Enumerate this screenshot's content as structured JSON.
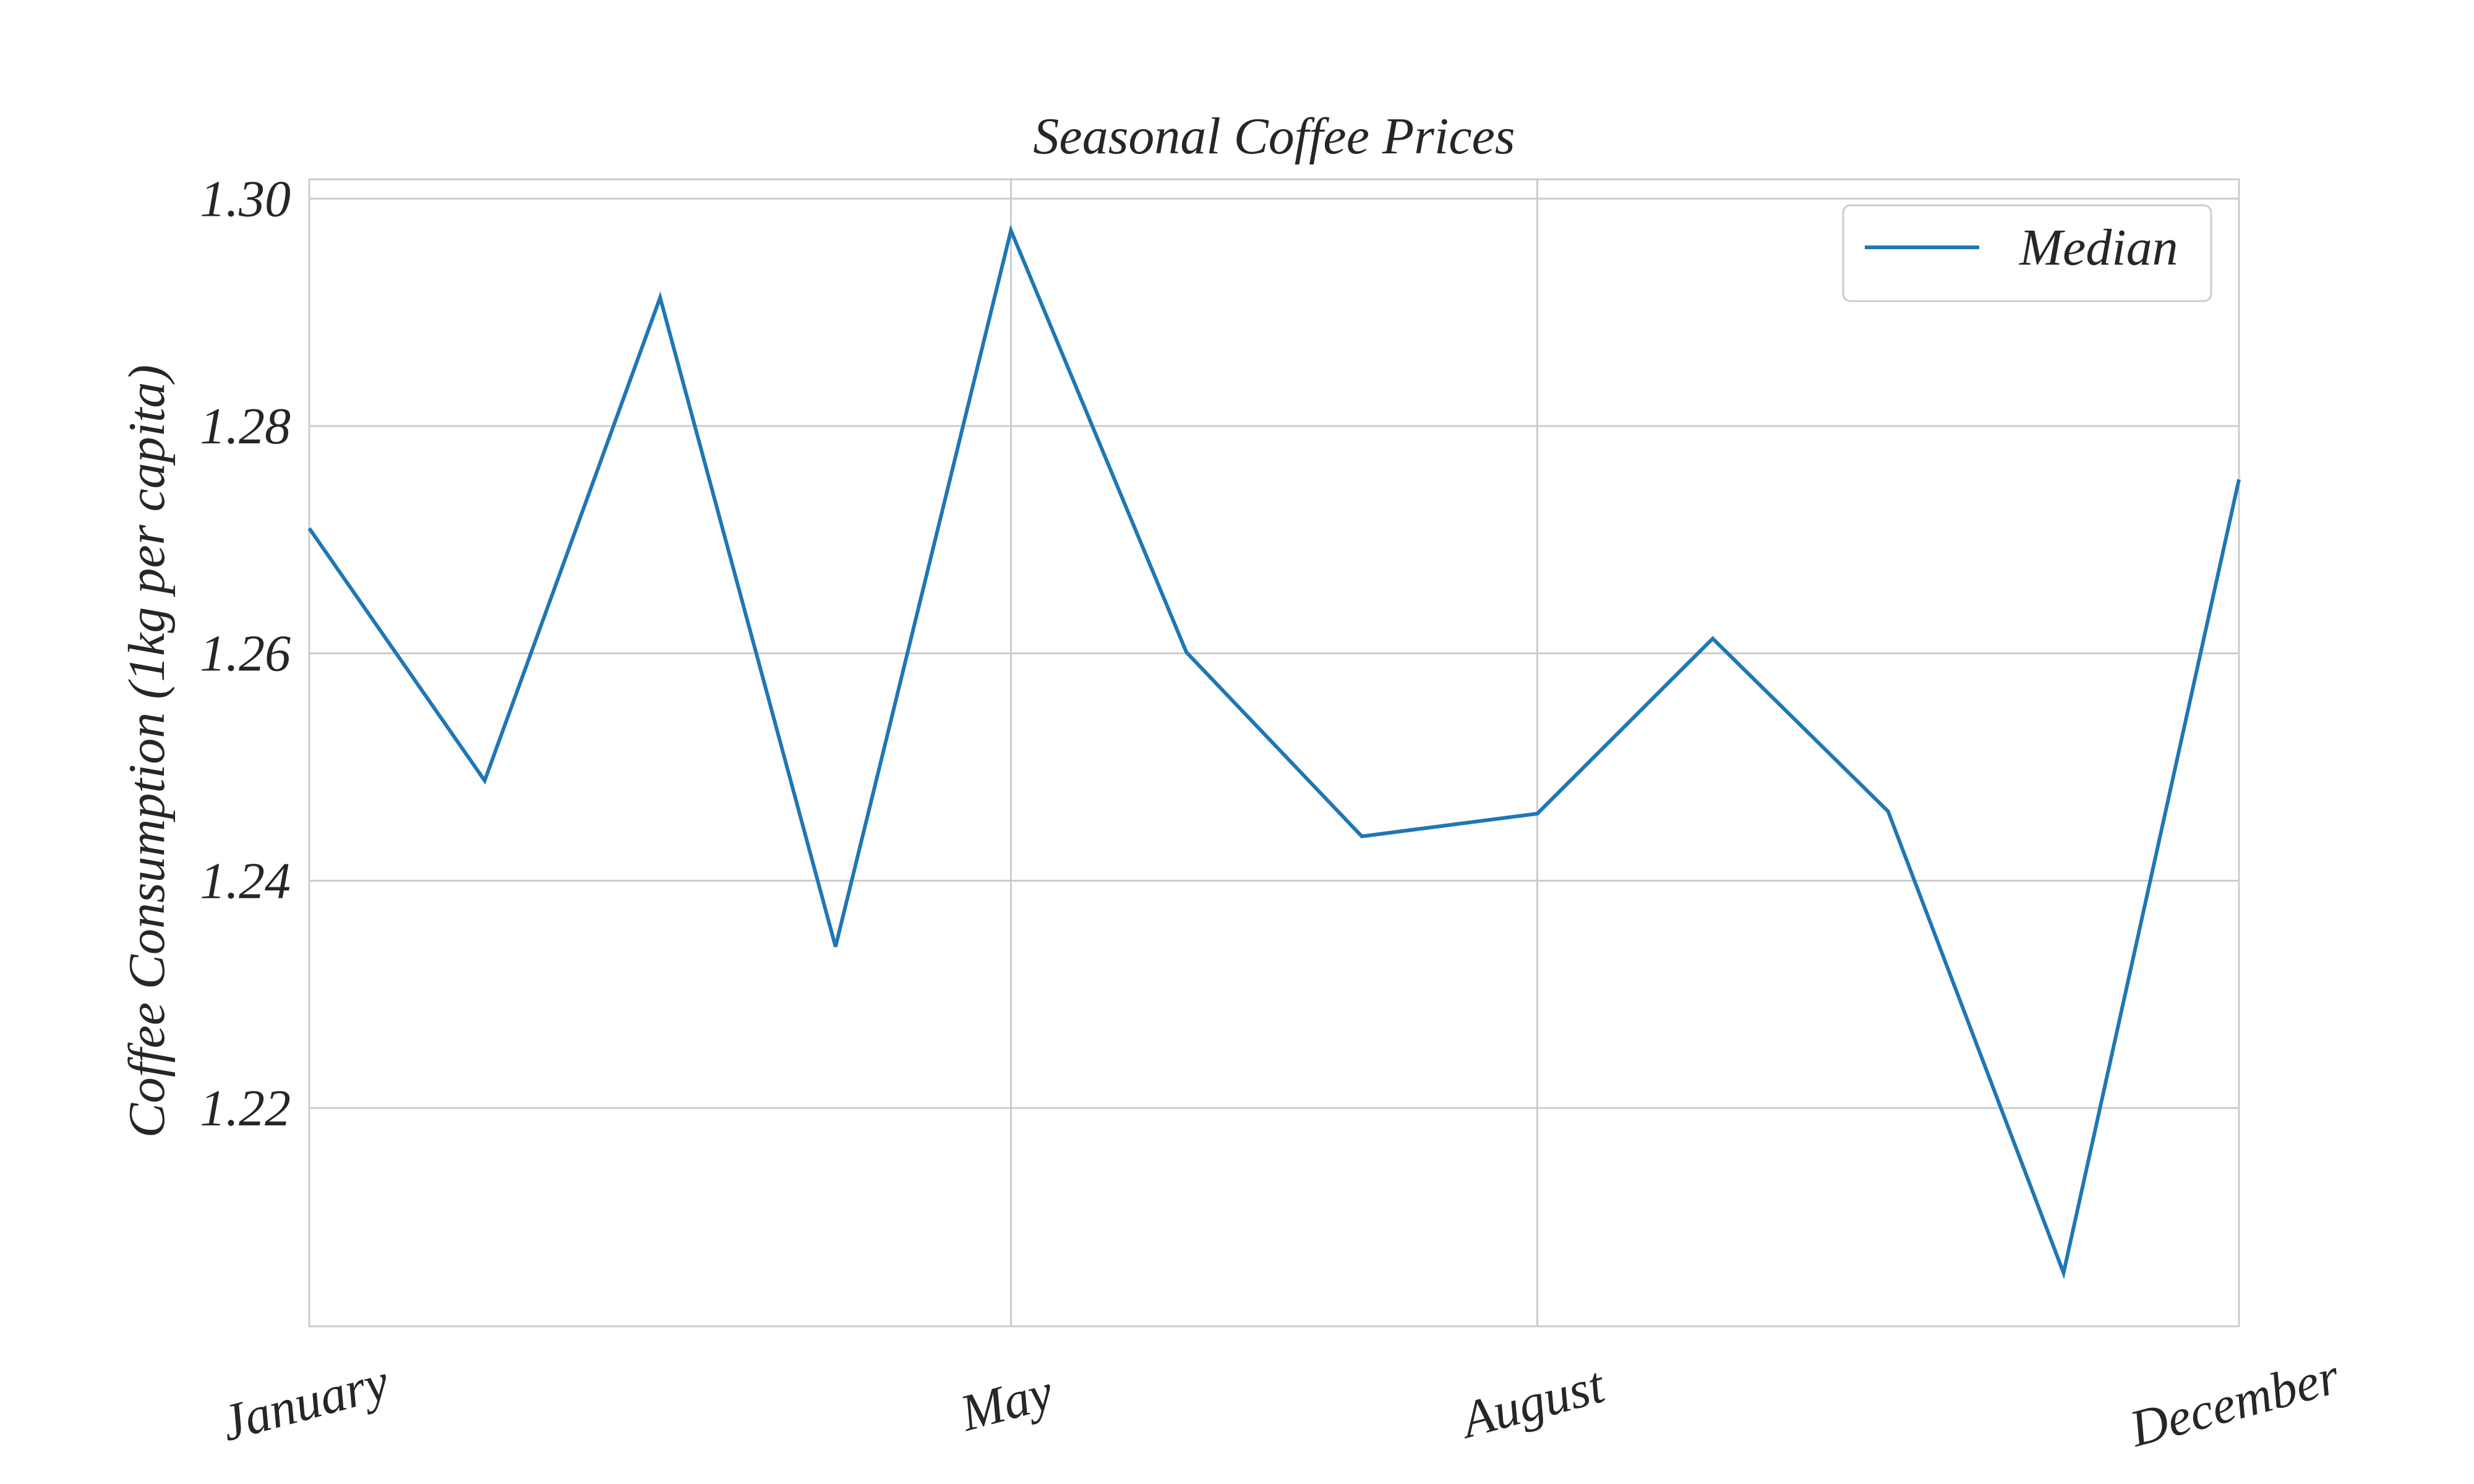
{
  "chart_data": {
    "type": "line",
    "title": "Seasonal Coffee Prices",
    "xlabel": "",
    "ylabel": "Coffee Consumption (1kg per capita)",
    "x_tick_labels": [
      {
        "label": "January",
        "month": 1
      },
      {
        "label": "May",
        "month": 5
      },
      {
        "label": "August",
        "month": 8
      },
      {
        "label": "December",
        "month": 12
      }
    ],
    "y_ticks": [
      "1.22",
      "1.24",
      "1.26",
      "1.28",
      "1.30"
    ],
    "ylim": [
      1.2008,
      1.3017
    ],
    "xlim": [
      1,
      12
    ],
    "grid": true,
    "legend": {
      "position": "top-right"
    },
    "series": [
      {
        "name": "Median",
        "color": "#1f77b4",
        "x": [
          1,
          2,
          3,
          4,
          5,
          6,
          7,
          8,
          9,
          10,
          11,
          12
        ],
        "values": [
          1.271,
          1.2488,
          1.2913,
          1.2342,
          1.2972,
          1.2601,
          1.2439,
          1.2459,
          1.2613,
          1.2461,
          1.2055,
          1.2753
        ]
      }
    ]
  }
}
